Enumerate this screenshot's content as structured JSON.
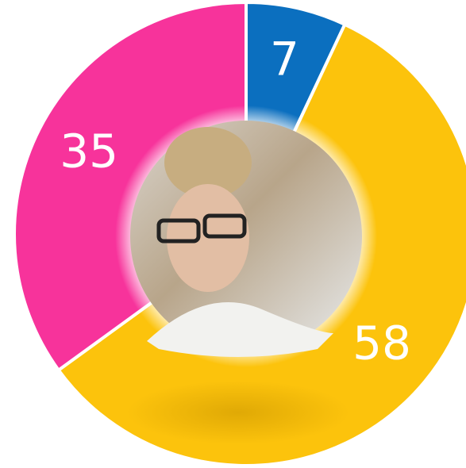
{
  "chart_data": {
    "type": "donut",
    "values": [
      7,
      58,
      35
    ],
    "colors": [
      "#0b6fbf",
      "#fcc30c",
      "#f7339b"
    ]
  }
}
